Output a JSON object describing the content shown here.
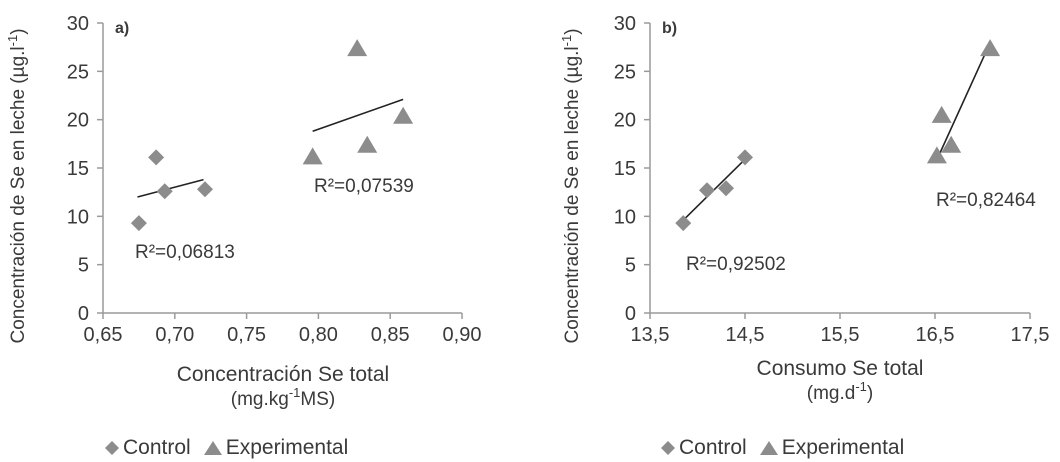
{
  "chart_data": [
    {
      "type": "scatter",
      "panel_label": "a)",
      "xlabel_lines": [
        "Concentración Se total",
        "(mg.kg",
        "-1",
        "MS)"
      ],
      "ylabel": "Concentración de Se en leche (µg.l",
      "ylabel_sup": "-1",
      "ylabel_end": ")",
      "xlim": [
        0.65,
        0.9
      ],
      "ylim": [
        0,
        30
      ],
      "xticks": [
        0.65,
        0.7,
        0.75,
        0.8,
        0.85,
        0.9
      ],
      "xtick_labels": [
        "0,65",
        "0,70",
        "0,75",
        "0,80",
        "0,85",
        "0,90"
      ],
      "yticks": [
        0,
        5,
        10,
        15,
        20,
        25,
        30
      ],
      "ytick_labels": [
        "0",
        "5",
        "10",
        "15",
        "20",
        "25",
        "30"
      ],
      "series": [
        {
          "name": "Control",
          "marker": "diamond",
          "points": [
            [
              0.675,
              9.3
            ],
            [
              0.687,
              16.1
            ],
            [
              0.693,
              12.6
            ],
            [
              0.721,
              12.8
            ]
          ],
          "trend": [
            [
              0.674,
              12.0
            ],
            [
              0.72,
              13.8
            ]
          ],
          "r2_label": "R²=0,06813"
        },
        {
          "name": "Experimental",
          "marker": "triangle",
          "points": [
            [
              0.796,
              16.2
            ],
            [
              0.827,
              27.4
            ],
            [
              0.834,
              17.4
            ],
            [
              0.859,
              20.4
            ]
          ],
          "trend": [
            [
              0.796,
              18.8
            ],
            [
              0.859,
              22.1
            ]
          ],
          "r2_label": "R²=0,07539"
        }
      ],
      "legend": [
        "Control",
        "Experimental"
      ]
    },
    {
      "type": "scatter",
      "panel_label": "b)",
      "xlabel_lines": [
        "Consumo Se total",
        "(mg.d",
        "-1",
        ")"
      ],
      "ylabel": "Concentración de Se en leche (µg.l",
      "ylabel_sup": "-1",
      "ylabel_end": ")",
      "xlim": [
        13.5,
        17.5
      ],
      "ylim": [
        0,
        30
      ],
      "xticks": [
        13.5,
        14.5,
        15.5,
        16.5,
        17.5
      ],
      "xtick_labels": [
        "13,5",
        "14,5",
        "15,5",
        "16,5",
        "17,5"
      ],
      "yticks": [
        0,
        5,
        10,
        15,
        20,
        25,
        30
      ],
      "ytick_labels": [
        "0",
        "5",
        "10",
        "15",
        "20",
        "25",
        "30"
      ],
      "series": [
        {
          "name": "Control",
          "marker": "diamond",
          "points": [
            [
              13.85,
              9.3
            ],
            [
              14.1,
              12.7
            ],
            [
              14.3,
              12.9
            ],
            [
              14.5,
              16.1
            ]
          ],
          "trend": [
            [
              13.85,
              9.6
            ],
            [
              14.5,
              15.9
            ]
          ],
          "r2_label": "R²=0,92502"
        },
        {
          "name": "Experimental",
          "marker": "triangle",
          "points": [
            [
              16.52,
              16.3
            ],
            [
              16.57,
              20.5
            ],
            [
              16.67,
              17.4
            ],
            [
              17.08,
              27.4
            ]
          ],
          "trend": [
            [
              16.55,
              16.5
            ],
            [
              17.05,
              27.3
            ]
          ],
          "r2_label": "R²=0,82464"
        }
      ],
      "legend": [
        "Control",
        "Experimental"
      ]
    }
  ],
  "colors": {
    "marker": "#8c8c8c",
    "axis": "#9a9a9a",
    "trend": "#222222",
    "text": "#3a3a3a"
  }
}
